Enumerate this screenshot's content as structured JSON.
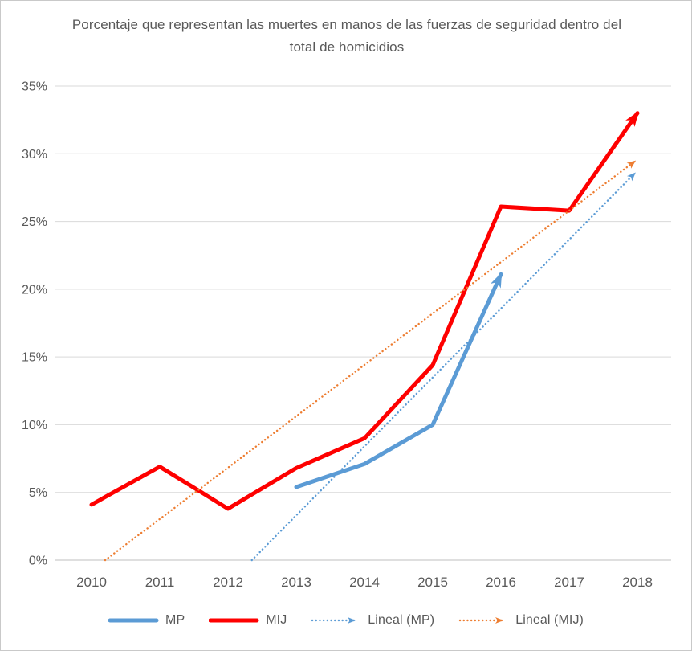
{
  "frame": {
    "background": "#ffffff",
    "border_color": "#c9c9c9"
  },
  "chart_data": {
    "type": "line",
    "title": "Porcentaje que representan las muertes en manos de las fuerzas de seguridad dentro del total de homicidios",
    "categories": [
      2010,
      2011,
      2012,
      2013,
      2014,
      2015,
      2016,
      2017,
      2018
    ],
    "y_axis": {
      "min": 0,
      "max": 35,
      "step": 5,
      "format": "percent",
      "tick_labels": [
        "0%",
        "5%",
        "10%",
        "15%",
        "20%",
        "25%",
        "30%",
        "35%"
      ]
    },
    "grid": {
      "gridline_color": "#d9d9d9",
      "axis_color": "#bfbfbf",
      "text_color": "#595959",
      "horizontal_gridlines": true,
      "vertical_gridlines": false
    },
    "series": [
      {
        "name": "MP",
        "color": "#5B9BD5",
        "style": "solid",
        "arrow_end": true,
        "points": [
          {
            "year": 2013,
            "value": 5.4
          },
          {
            "year": 2014,
            "value": 7.1
          },
          {
            "year": 2015,
            "value": 10.0
          },
          {
            "year": 2016,
            "value": 21.1
          }
        ]
      },
      {
        "name": "MIJ",
        "color": "#FE0000",
        "style": "solid",
        "arrow_end": true,
        "points": [
          {
            "year": 2010,
            "value": 4.1
          },
          {
            "year": 2011,
            "value": 6.9
          },
          {
            "year": 2012,
            "value": 3.8
          },
          {
            "year": 2013,
            "value": 6.8
          },
          {
            "year": 2014,
            "value": 9.0
          },
          {
            "year": 2015,
            "value": 14.4
          },
          {
            "year": 2016,
            "value": 26.1
          },
          {
            "year": 2017,
            "value": 25.8
          },
          {
            "year": 2018,
            "value": 33.0
          }
        ]
      }
    ],
    "trendlines": [
      {
        "name": "Lineal (MP)",
        "color": "#5B9BD5",
        "style": "dotted",
        "arrow_end": true,
        "from": {
          "year": 2012.35,
          "value": 0
        },
        "to": {
          "year": 2017.95,
          "value": 28.5
        }
      },
      {
        "name": "Lineal (MIJ)",
        "color": "#ED7D31",
        "style": "dotted",
        "arrow_end": true,
        "from": {
          "year": 2010.2,
          "value": 0
        },
        "to": {
          "year": 2017.95,
          "value": 29.4
        }
      }
    ],
    "legend": {
      "position": "bottom",
      "items": [
        {
          "label": "MP",
          "color": "#5B9BD5",
          "style": "solid",
          "arrow": false
        },
        {
          "label": "MIJ",
          "color": "#FE0000",
          "style": "solid",
          "arrow": false
        },
        {
          "label": "Lineal (MP)",
          "color": "#5B9BD5",
          "style": "dotted",
          "arrow": true
        },
        {
          "label": "Lineal (MIJ)",
          "color": "#ED7D31",
          "style": "dotted",
          "arrow": true
        }
      ]
    }
  }
}
